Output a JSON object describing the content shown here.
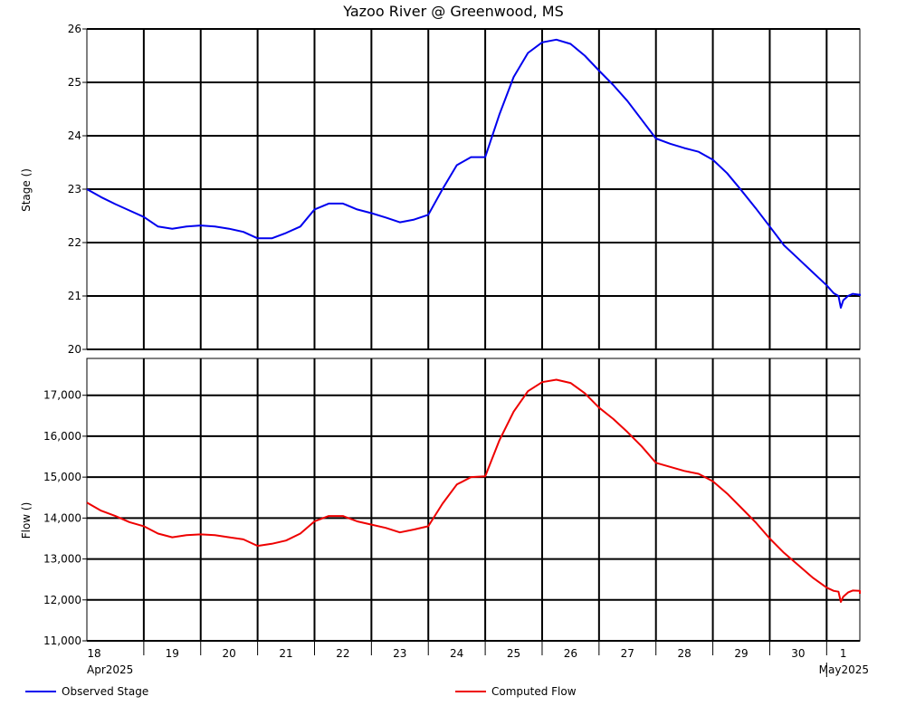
{
  "chart_data": {
    "type": "line",
    "title": "Yazoo River @ Greenwood, MS",
    "x_axis": {
      "day_labels": [
        "18",
        "19",
        "20",
        "21",
        "22",
        "23",
        "24",
        "25",
        "26",
        "27",
        "28",
        "29",
        "30",
        "1"
      ],
      "month_labels": [
        "Apr2025",
        "May2025"
      ],
      "range": [
        "2025-04-18 00:00",
        "2025-05-01 14:00"
      ],
      "grid": true
    },
    "panels": [
      {
        "id": "stage",
        "ylabel": "Stage ()",
        "ylim": [
          20,
          26
        ],
        "yticks": [
          20,
          21,
          22,
          23,
          24,
          25,
          26
        ],
        "ytick_labels": [
          "20",
          "21",
          "22",
          "23",
          "24",
          "25",
          "26"
        ],
        "grid": true,
        "series": [
          {
            "name": "Observed Stage",
            "color": "#0000ee",
            "points": [
              [
                "2025-04-18 00:00",
                23.0
              ],
              [
                "2025-04-18 06:00",
                22.85
              ],
              [
                "2025-04-18 12:00",
                22.72
              ],
              [
                "2025-04-18 18:00",
                22.6
              ],
              [
                "2025-04-19 00:00",
                22.48
              ],
              [
                "2025-04-19 06:00",
                22.3
              ],
              [
                "2025-04-19 12:00",
                22.26
              ],
              [
                "2025-04-19 18:00",
                22.3
              ],
              [
                "2025-04-20 00:00",
                22.32
              ],
              [
                "2025-04-20 06:00",
                22.3
              ],
              [
                "2025-04-20 12:00",
                22.26
              ],
              [
                "2025-04-20 18:00",
                22.2
              ],
              [
                "2025-04-21 00:00",
                22.08
              ],
              [
                "2025-04-21 06:00",
                22.08
              ],
              [
                "2025-04-21 12:00",
                22.18
              ],
              [
                "2025-04-21 18:00",
                22.3
              ],
              [
                "2025-04-22 00:00",
                22.62
              ],
              [
                "2025-04-22 06:00",
                22.73
              ],
              [
                "2025-04-22 12:00",
                22.73
              ],
              [
                "2025-04-22 18:00",
                22.62
              ],
              [
                "2025-04-23 00:00",
                22.55
              ],
              [
                "2025-04-23 06:00",
                22.47
              ],
              [
                "2025-04-23 12:00",
                22.38
              ],
              [
                "2025-04-23 18:00",
                22.43
              ],
              [
                "2025-04-24 00:00",
                22.52
              ],
              [
                "2025-04-24 06:00",
                23.0
              ],
              [
                "2025-04-24 12:00",
                23.45
              ],
              [
                "2025-04-24 18:00",
                23.6
              ],
              [
                "2025-04-25 00:00",
                23.6
              ],
              [
                "2025-04-25 06:00",
                24.4
              ],
              [
                "2025-04-25 12:00",
                25.1
              ],
              [
                "2025-04-25 18:00",
                25.55
              ],
              [
                "2025-04-26 00:00",
                25.75
              ],
              [
                "2025-04-26 06:00",
                25.8
              ],
              [
                "2025-04-26 12:00",
                25.72
              ],
              [
                "2025-04-26 18:00",
                25.5
              ],
              [
                "2025-04-27 00:00",
                25.22
              ],
              [
                "2025-04-27 06:00",
                24.95
              ],
              [
                "2025-04-27 12:00",
                24.65
              ],
              [
                "2025-04-27 18:00",
                24.3
              ],
              [
                "2025-04-28 00:00",
                23.95
              ],
              [
                "2025-04-28 06:00",
                23.85
              ],
              [
                "2025-04-28 12:00",
                23.77
              ],
              [
                "2025-04-28 18:00",
                23.7
              ],
              [
                "2025-04-29 00:00",
                23.55
              ],
              [
                "2025-04-29 06:00",
                23.3
              ],
              [
                "2025-04-29 12:00",
                22.98
              ],
              [
                "2025-04-29 18:00",
                22.65
              ],
              [
                "2025-04-30 00:00",
                22.3
              ],
              [
                "2025-04-30 06:00",
                21.95
              ],
              [
                "2025-04-30 12:00",
                21.7
              ],
              [
                "2025-04-30 18:00",
                21.45
              ],
              [
                "2025-05-01 00:00",
                21.2
              ],
              [
                "2025-05-01 03:00",
                21.05
              ],
              [
                "2025-05-01 05:00",
                21.0
              ],
              [
                "2025-05-01 06:00",
                20.78
              ],
              [
                "2025-05-01 07:00",
                20.92
              ],
              [
                "2025-05-01 09:00",
                21.0
              ],
              [
                "2025-05-01 11:00",
                21.04
              ],
              [
                "2025-05-01 14:00",
                21.02
              ],
              [
                "2025-05-01 18:00",
                21.03
              ],
              [
                "2025-05-01 22:00",
                21.02
              ],
              [
                "2025-05-02 02:00",
                21.0
              ]
            ]
          }
        ]
      },
      {
        "id": "flow",
        "ylabel": "Flow ()",
        "ylim": [
          11000,
          17900
        ],
        "yticks": [
          11000,
          12000,
          13000,
          14000,
          15000,
          16000,
          17000
        ],
        "ytick_labels": [
          "11,000",
          "12,000",
          "13,000",
          "14,000",
          "15,000",
          "16,000",
          "17,000"
        ],
        "grid": true,
        "series": [
          {
            "name": "Computed Flow",
            "color": "#ee0000",
            "points": [
              [
                "2025-04-18 00:00",
                14380
              ],
              [
                "2025-04-18 06:00",
                14180
              ],
              [
                "2025-04-18 12:00",
                14050
              ],
              [
                "2025-04-18 18:00",
                13900
              ],
              [
                "2025-04-19 00:00",
                13800
              ],
              [
                "2025-04-19 06:00",
                13620
              ],
              [
                "2025-04-19 12:00",
                13530
              ],
              [
                "2025-04-19 18:00",
                13580
              ],
              [
                "2025-04-20 00:00",
                13600
              ],
              [
                "2025-04-20 06:00",
                13580
              ],
              [
                "2025-04-20 12:00",
                13530
              ],
              [
                "2025-04-20 18:00",
                13480
              ],
              [
                "2025-04-21 00:00",
                13320
              ],
              [
                "2025-04-21 06:00",
                13370
              ],
              [
                "2025-04-21 12:00",
                13450
              ],
              [
                "2025-04-21 18:00",
                13620
              ],
              [
                "2025-04-22 00:00",
                13920
              ],
              [
                "2025-04-22 06:00",
                14050
              ],
              [
                "2025-04-22 12:00",
                14050
              ],
              [
                "2025-04-22 18:00",
                13920
              ],
              [
                "2025-04-23 00:00",
                13840
              ],
              [
                "2025-04-23 06:00",
                13760
              ],
              [
                "2025-04-23 12:00",
                13650
              ],
              [
                "2025-04-23 18:00",
                13720
              ],
              [
                "2025-04-24 00:00",
                13800
              ],
              [
                "2025-04-24 06:00",
                14350
              ],
              [
                "2025-04-24 12:00",
                14820
              ],
              [
                "2025-04-24 18:00",
                15000
              ],
              [
                "2025-04-25 00:00",
                15020
              ],
              [
                "2025-04-25 06:00",
                15900
              ],
              [
                "2025-04-25 12:00",
                16600
              ],
              [
                "2025-04-25 18:00",
                17100
              ],
              [
                "2025-04-26 00:00",
                17320
              ],
              [
                "2025-04-26 06:00",
                17380
              ],
              [
                "2025-04-26 12:00",
                17300
              ],
              [
                "2025-04-26 18:00",
                17050
              ],
              [
                "2025-04-27 00:00",
                16700
              ],
              [
                "2025-04-27 06:00",
                16420
              ],
              [
                "2025-04-27 12:00",
                16100
              ],
              [
                "2025-04-27 18:00",
                15750
              ],
              [
                "2025-04-28 00:00",
                15350
              ],
              [
                "2025-04-28 06:00",
                15250
              ],
              [
                "2025-04-28 12:00",
                15150
              ],
              [
                "2025-04-28 18:00",
                15080
              ],
              [
                "2025-04-29 00:00",
                14900
              ],
              [
                "2025-04-29 06:00",
                14600
              ],
              [
                "2025-04-29 12:00",
                14250
              ],
              [
                "2025-04-29 18:00",
                13900
              ],
              [
                "2025-04-30 00:00",
                13500
              ],
              [
                "2025-04-30 06:00",
                13150
              ],
              [
                "2025-04-30 12:00",
                12850
              ],
              [
                "2025-04-30 18:00",
                12550
              ],
              [
                "2025-05-01 00:00",
                12300
              ],
              [
                "2025-05-01 03:00",
                12220
              ],
              [
                "2025-05-01 05:00",
                12200
              ],
              [
                "2025-05-01 06:00",
                11950
              ],
              [
                "2025-05-01 07:00",
                12080
              ],
              [
                "2025-05-01 09:00",
                12180
              ],
              [
                "2025-05-01 11:00",
                12230
              ],
              [
                "2025-05-01 14:00",
                12220
              ],
              [
                "2025-05-01 18:00",
                12210
              ],
              [
                "2025-05-01 22:00",
                12180
              ],
              [
                "2025-05-02 02:00",
                12150
              ]
            ]
          }
        ]
      }
    ],
    "legend": {
      "placement": "bottom",
      "entries": [
        {
          "name": "Observed Stage",
          "color": "#0000ee"
        },
        {
          "name": "Computed Flow",
          "color": "#ee0000"
        }
      ]
    }
  }
}
